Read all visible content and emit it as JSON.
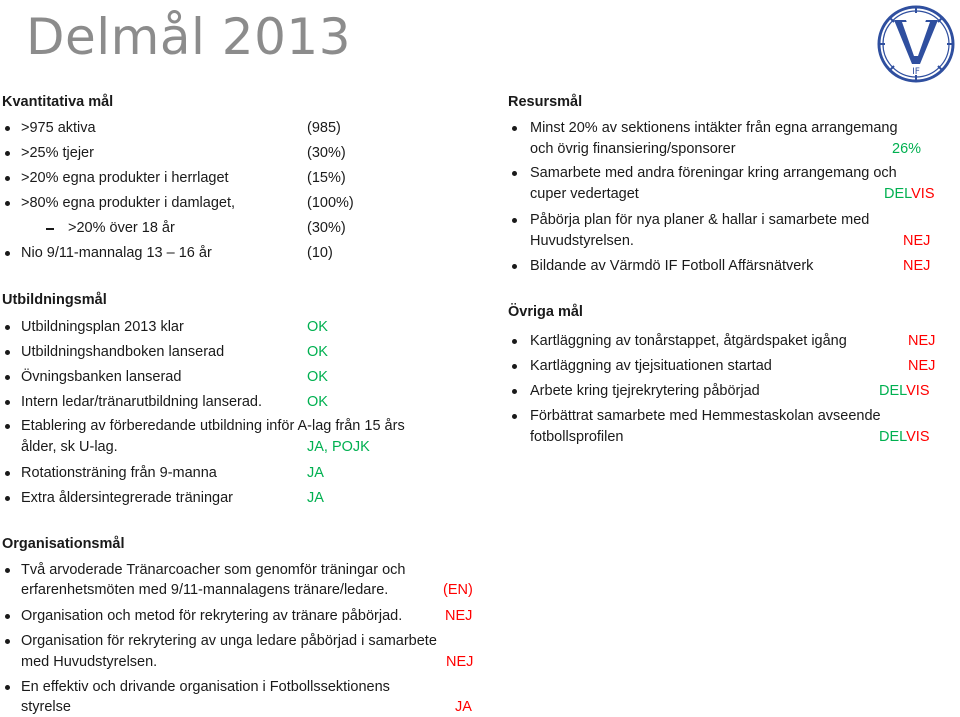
{
  "title": "Delmål 2013",
  "quant": {
    "heading": "Kvantitativa mål",
    "items": [
      {
        "text": ">975 aktiva",
        "value": "(985)"
      },
      {
        "text": ">25% tjejer",
        "value": "(30%)"
      },
      {
        "text": ">20% egna produkter i herrlaget",
        "value": "(15%)"
      },
      {
        "text": ">80% egna produkter i damlaget,",
        "value": "(100%)"
      },
      {
        "text": ">20% över 18 år",
        "value": "(30%)"
      },
      {
        "text": "Nio 9/11-mannalag 13 – 16 år",
        "value": "(10)"
      }
    ]
  },
  "edu": {
    "heading": "Utbildningsmål",
    "items": [
      {
        "text": "Utbildningsplan 2013 klar",
        "status": "OK"
      },
      {
        "text": "Utbildningshandboken lanserad",
        "status": "OK"
      },
      {
        "text": "Övningsbanken lanserad",
        "status": "OK"
      },
      {
        "text": "Intern ledar/tränarutbildning lanserad.",
        "status": "OK"
      },
      {
        "text": "Etablering av förberedande utbildning inför A-lag från 15 års",
        "text2": "ålder, sk U-lag.",
        "status": "JA, POJK"
      },
      {
        "text": "Rotationsträning från 9-manna",
        "status": "JA"
      },
      {
        "text": "Extra åldersintegrerade träningar",
        "status": "JA"
      }
    ]
  },
  "org": {
    "heading": "Organisationsmål",
    "items": [
      {
        "text": "Två arvoderade Tränarcoacher som genomför träningar och",
        "text2": "erfarenhetsmöten med 9/11-mannalagens tränare/ledare.",
        "status": "(EN)"
      },
      {
        "text": "Organisation och metod för rekrytering av tränare påbörjad.",
        "status": "NEJ"
      },
      {
        "text": "Organisation för rekrytering av unga ledare påbörjad i samarbete",
        "text2": "med Huvudstyrelsen.",
        "status": "NEJ"
      },
      {
        "text": "En effektiv och drivande organisation i Fotbollssektionens",
        "text2": "styrelse",
        "status": "JA"
      }
    ]
  },
  "resurs": {
    "heading": "Resursmål",
    "items": [
      {
        "text": "Minst 20% av sektionens intäkter från egna arrangemang",
        "text2": "och övrig finansiering/sponsorer",
        "status": "26%"
      },
      {
        "text": "Samarbete med andra föreningar kring arrangemang och",
        "text2": "cuper vedertaget",
        "status_a": "DEL",
        "status_b": "VIS"
      },
      {
        "text": "Påbörja plan för nya planer & hallar i samarbete med",
        "text2": "Huvudstyrelsen.",
        "status": "NEJ"
      },
      {
        "text": "Bildande av Värmdö IF Fotboll Affärsnätverk",
        "status": "NEJ"
      }
    ]
  },
  "ovriga": {
    "heading": "Övriga mål",
    "items": [
      {
        "text": "Kartläggning av tonårstappet, åtgärdspaket igång",
        "status": "NEJ"
      },
      {
        "text": "Kartläggning av tjejsituationen startad",
        "status": "NEJ"
      },
      {
        "text": "Arbete kring tjejrekrytering påbörjad",
        "status_a": "DEL",
        "status_b": "VIS"
      },
      {
        "text": "Förbättrat samarbete med Hemmestaskolan avseende",
        "text2": "fotbollsprofilen",
        "status_a": "DEL",
        "status_b": "VIS"
      }
    ]
  },
  "logo": {
    "letters": "IF"
  },
  "colors": {
    "green": "#00b050",
    "red": "#ff0000",
    "title_gray": "#8c8c8c",
    "logo_blue": "#2f4f9f"
  }
}
